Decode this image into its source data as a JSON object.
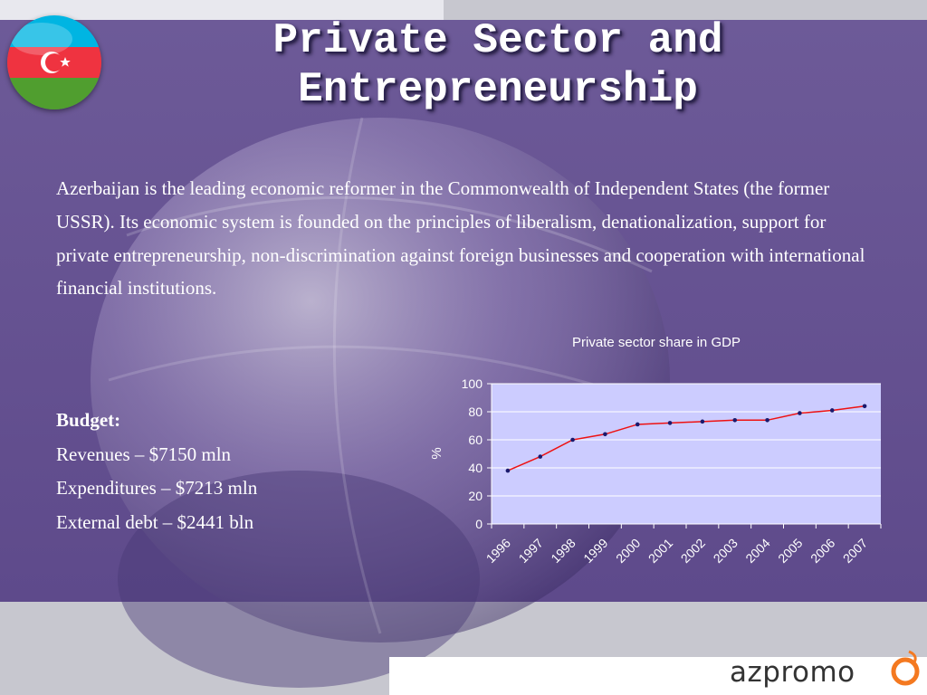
{
  "slide": {
    "title_line1": "Private Sector and",
    "title_line2": "Entrepreneurship",
    "intro": "Azerbaijan is the leading economic reformer in the Commonwealth of Independent States (the former USSR). Its economic system is founded on the principles of liberalism, denationalization, support for private entrepreneurship, non-discrimination against foreign businesses and cooperation with international financial institutions.",
    "budget": {
      "heading": "Budget:",
      "items": [
        "Revenues – $7150 mln",
        "Expenditures – $7213 mln",
        "External debt – $2441 bln"
      ]
    },
    "flag_icon": "azerbaijan-flag-icon",
    "logo_text": "azpromo"
  },
  "colors": {
    "background_purple": "#6a5595",
    "plot_area": "#ccccff",
    "line": "#ee1111",
    "marker": "#1a1a6e",
    "flag_blue": "#00b5e2",
    "flag_red": "#ef3340",
    "flag_green": "#509e2f",
    "logo_accent": "#f47920"
  },
  "chart_data": {
    "type": "line",
    "title": "Private sector share in GDP",
    "xlabel": "",
    "ylabel": "%",
    "categories": [
      "1996",
      "1997",
      "1998",
      "1999",
      "2000",
      "2001",
      "2002",
      "2003",
      "2004",
      "2005",
      "2006",
      "2007"
    ],
    "series": [
      {
        "values": [
          38,
          48,
          60,
          64,
          71,
          72,
          73,
          74,
          74,
          79,
          81,
          84
        ]
      }
    ],
    "ylim": [
      0,
      100
    ],
    "yticks": [
      0,
      20,
      40,
      60,
      80,
      100
    ],
    "grid": true,
    "legend": "none"
  }
}
